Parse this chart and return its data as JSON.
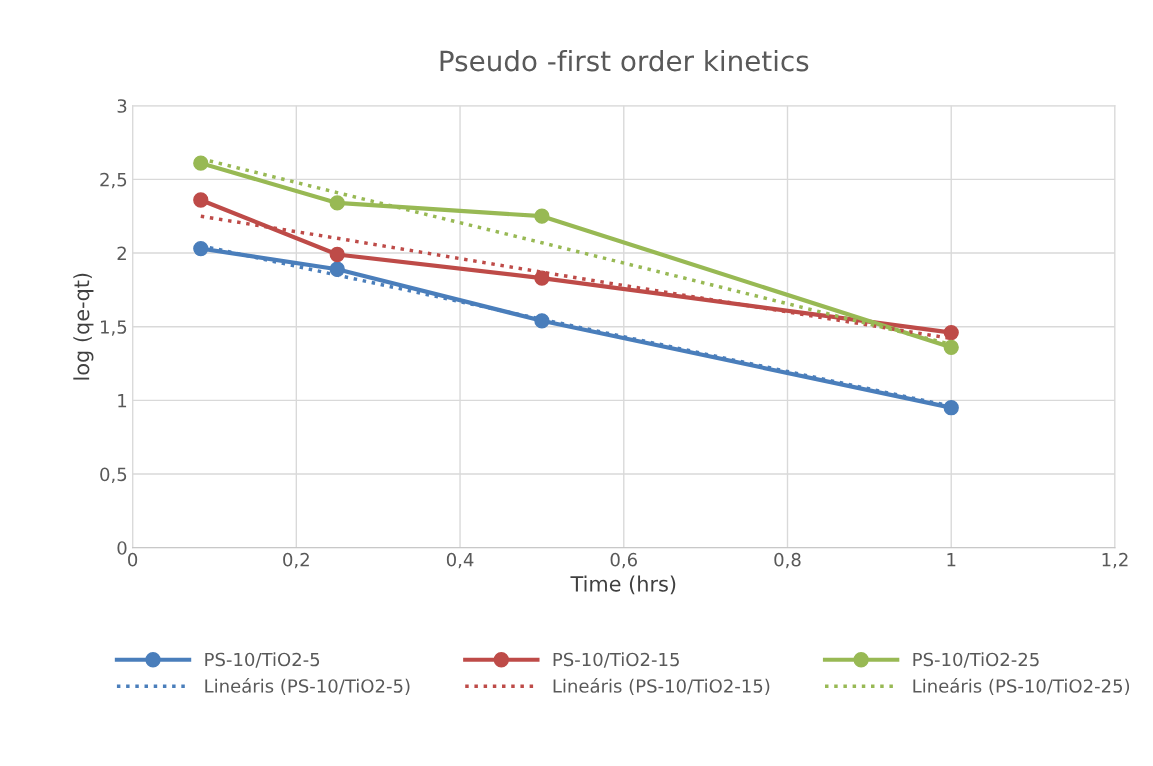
{
  "chart_data": {
    "type": "line",
    "title": "Pseudo -first order kinetics",
    "xlabel": "Time (hrs)",
    "ylabel": "log (qe-qt)",
    "x": [
      0.0833,
      0.25,
      0.5,
      1
    ],
    "series": [
      {
        "name": "PS-10/TiO2-5",
        "color": "#4a7ebb",
        "values": [
          2.03,
          1.89,
          1.54,
          0.95
        ],
        "marker": "circle",
        "line_style": "solid"
      },
      {
        "name": "PS-10/TiO2-15",
        "color": "#be4b48",
        "values": [
          2.36,
          1.99,
          1.83,
          1.46
        ],
        "marker": "circle",
        "line_style": "solid"
      },
      {
        "name": "PS-10/TiO2-25",
        "color": "#98b954",
        "values": [
          2.61,
          2.34,
          2.25,
          1.36
        ],
        "marker": "circle",
        "line_style": "solid"
      },
      {
        "name": "Lineáris (PS-10/TiO2-5)",
        "color": "#4a7ebb",
        "values": [
          2.05,
          1.85,
          1.55,
          0.96
        ],
        "marker": "none",
        "line_style": "dotted"
      },
      {
        "name": "Lineáris (PS-10/TiO2-15)",
        "color": "#be4b48",
        "values": [
          2.25,
          2.1,
          1.87,
          1.42
        ],
        "marker": "none",
        "line_style": "dotted"
      },
      {
        "name": "Lineáris (PS-10/TiO2-25)",
        "color": "#98b954",
        "values": [
          2.64,
          2.41,
          2.07,
          1.38
        ],
        "marker": "none",
        "line_style": "dotted"
      }
    ],
    "xlim": [
      0,
      1.2
    ],
    "xticks": [
      0,
      {
        "value": 0.2,
        "label": "0,2"
      },
      {
        "value": 0.4,
        "label": "0,4"
      },
      {
        "value": 0.6,
        "label": "0,6"
      },
      {
        "value": 0.8,
        "label": "0,8"
      },
      1,
      {
        "value": 1.2,
        "label": "1,2"
      }
    ],
    "ylim": [
      0,
      3
    ],
    "yticks": [
      0,
      {
        "value": 0.5,
        "label": "0,5"
      },
      1,
      {
        "value": 1.5,
        "label": "1,5"
      },
      2,
      {
        "value": 2.5,
        "label": "2,5"
      },
      3
    ],
    "grid": true,
    "legend": "bottom"
  }
}
